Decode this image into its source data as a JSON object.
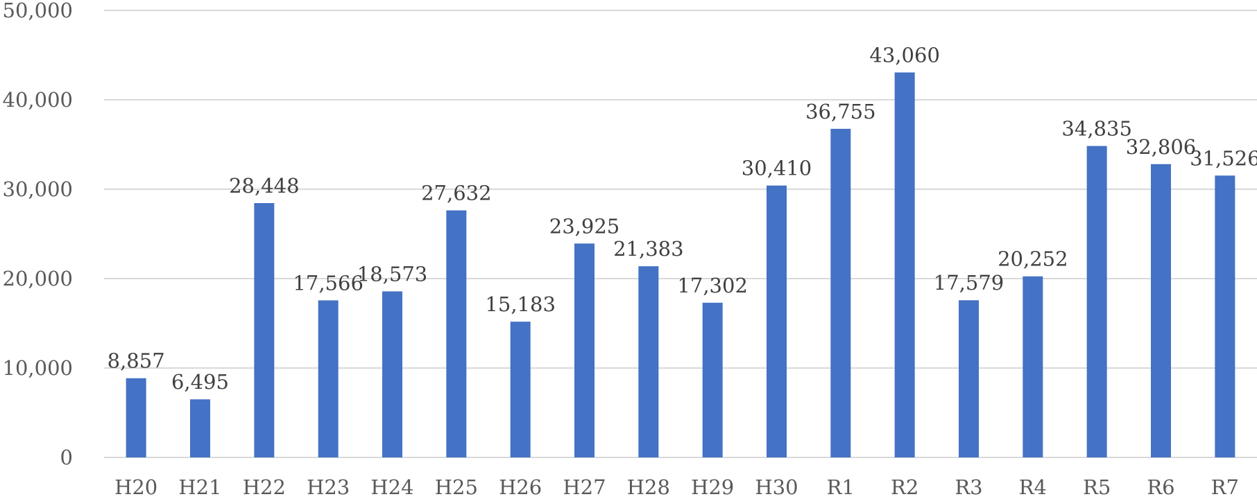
{
  "chart_data": {
    "type": "bar",
    "title": "",
    "xlabel": "",
    "ylabel": "",
    "categories": [
      "H20",
      "H21",
      "H22",
      "H23",
      "H24",
      "H25",
      "H26",
      "H27",
      "H28",
      "H29",
      "H30",
      "R1",
      "R2",
      "R3",
      "R4",
      "R5",
      "R6",
      "R7"
    ],
    "values": [
      8857,
      6495,
      28448,
      17566,
      18573,
      27632,
      15183,
      23925,
      21383,
      17302,
      30410,
      36755,
      43060,
      17579,
      20252,
      34835,
      32806,
      31526
    ],
    "value_labels": [
      "8,857",
      "6,495",
      "28,448",
      "17,566",
      "18,573",
      "27,632",
      "15,183",
      "23,925",
      "21,383",
      "17,302",
      "30,410",
      "36,755",
      "43,060",
      "17,579",
      "20,252",
      "34,835",
      "32,806",
      "31,526"
    ],
    "ylim": [
      0,
      50000
    ],
    "y_ticks": [
      0,
      10000,
      20000,
      30000,
      40000,
      50000
    ],
    "y_tick_labels": [
      "0",
      "10,000",
      "20,000",
      "30,000",
      "40,000",
      "50,000"
    ],
    "grid": true,
    "legend": "none",
    "bar_color": "#4472c4"
  }
}
